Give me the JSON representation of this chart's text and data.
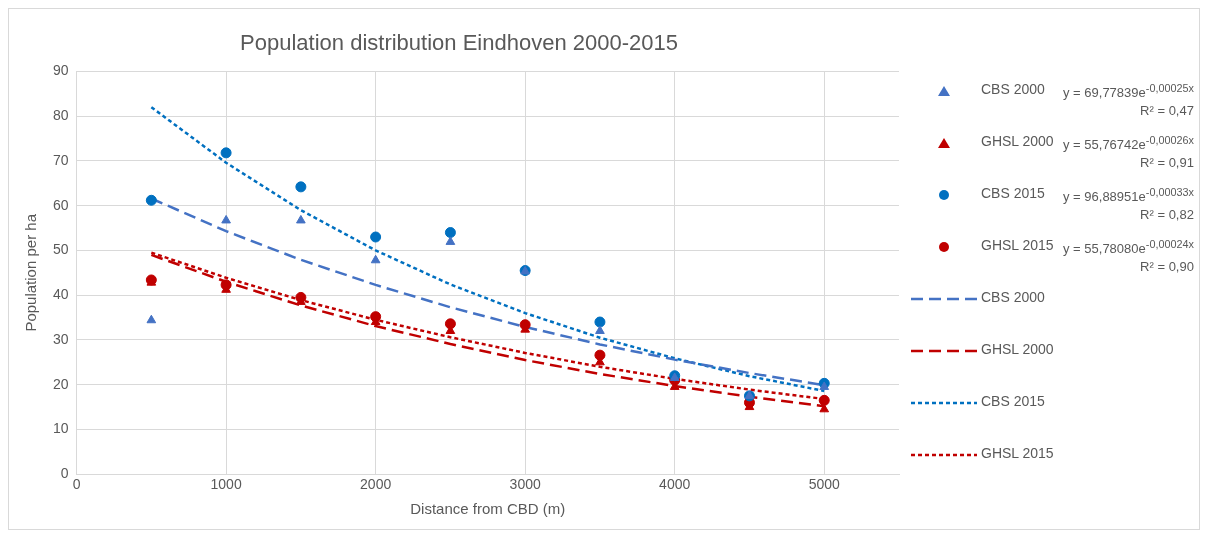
{
  "chart_data": {
    "type": "scatter",
    "title": "Population distribution Eindhoven 2000-2015",
    "xlabel": "Distance from CBD (m)",
    "ylabel": "Population per ha",
    "x": [
      500,
      1000,
      1500,
      2000,
      2500,
      3000,
      3500,
      4000,
      4500,
      5000
    ],
    "series": [
      {
        "name": "CBS 2000",
        "marker": "triangle",
        "color": "#4472c4",
        "values": [
          34.4,
          56.7,
          56.7,
          47.8,
          51.9,
          45.3,
          32,
          21.5,
          17.5,
          19.5
        ]
      },
      {
        "name": "GHSL 2000",
        "marker": "triangle",
        "color": "#c00000",
        "values": [
          42.8,
          41.2,
          38.5,
          34,
          32,
          32.3,
          25,
          19.5,
          15,
          14.5
        ]
      },
      {
        "name": "CBS 2015",
        "marker": "circle",
        "color": "#0070c0",
        "values": [
          61.2,
          71.8,
          64.2,
          53,
          54,
          45.5,
          34,
          22,
          17.5,
          20.3
        ]
      },
      {
        "name": "GHSL 2015",
        "marker": "circle",
        "color": "#c00000",
        "values": [
          43.4,
          42.3,
          39.5,
          35.2,
          33.6,
          33.4,
          26.6,
          21,
          16,
          16.5
        ]
      },
      {
        "name": "CBS 2000",
        "type": "line",
        "marker": "none",
        "line_style": "dashed",
        "color": "#4472c4",
        "values": [
          61.6,
          54.3,
          47.9,
          42.3,
          37.3,
          32.9,
          29,
          25.6,
          22.6,
          19.9
        ]
      },
      {
        "name": "GHSL 2000",
        "type": "line",
        "marker": "none",
        "line_style": "dashed",
        "color": "#c00000",
        "values": [
          49,
          43,
          37.7,
          33.1,
          29.1,
          25.5,
          22.4,
          19.7,
          17.3,
          15.2
        ]
      },
      {
        "name": "CBS 2015",
        "type": "line",
        "marker": "none",
        "line_style": "dotted",
        "color": "#0070c0",
        "values": [
          82,
          69.6,
          59,
          50,
          42.4,
          36,
          30.5,
          25.9,
          21.9,
          18.6
        ]
      },
      {
        "name": "GHSL 2015",
        "type": "line",
        "marker": "none",
        "line_style": "dotted",
        "color": "#c00000",
        "values": [
          49.5,
          43.9,
          38.9,
          34.5,
          30.6,
          27.1,
          24,
          21.3,
          18.9,
          16.8
        ]
      }
    ],
    "annotations": [
      "y = 69,77839e$^{-0,00025x}$",
      "R² = 0,47",
      "y = 55,76742e$^{-0,00026x}$",
      "R² = 0,91",
      "y = 96,88951e$^{-0,00033x}$",
      "R² = 0,82",
      "y = 55,78080e$^{-0,00024x}$",
      "R² = 0,90"
    ],
    "xlim": [
      0,
      5500
    ],
    "xticks": [
      0,
      1000,
      2000,
      3000,
      4000,
      5000
    ],
    "ylim": [
      0,
      90
    ],
    "yticks": [
      0,
      10,
      20,
      30,
      40,
      50,
      60,
      70,
      80,
      90
    ],
    "grid": true,
    "legend": "right"
  }
}
